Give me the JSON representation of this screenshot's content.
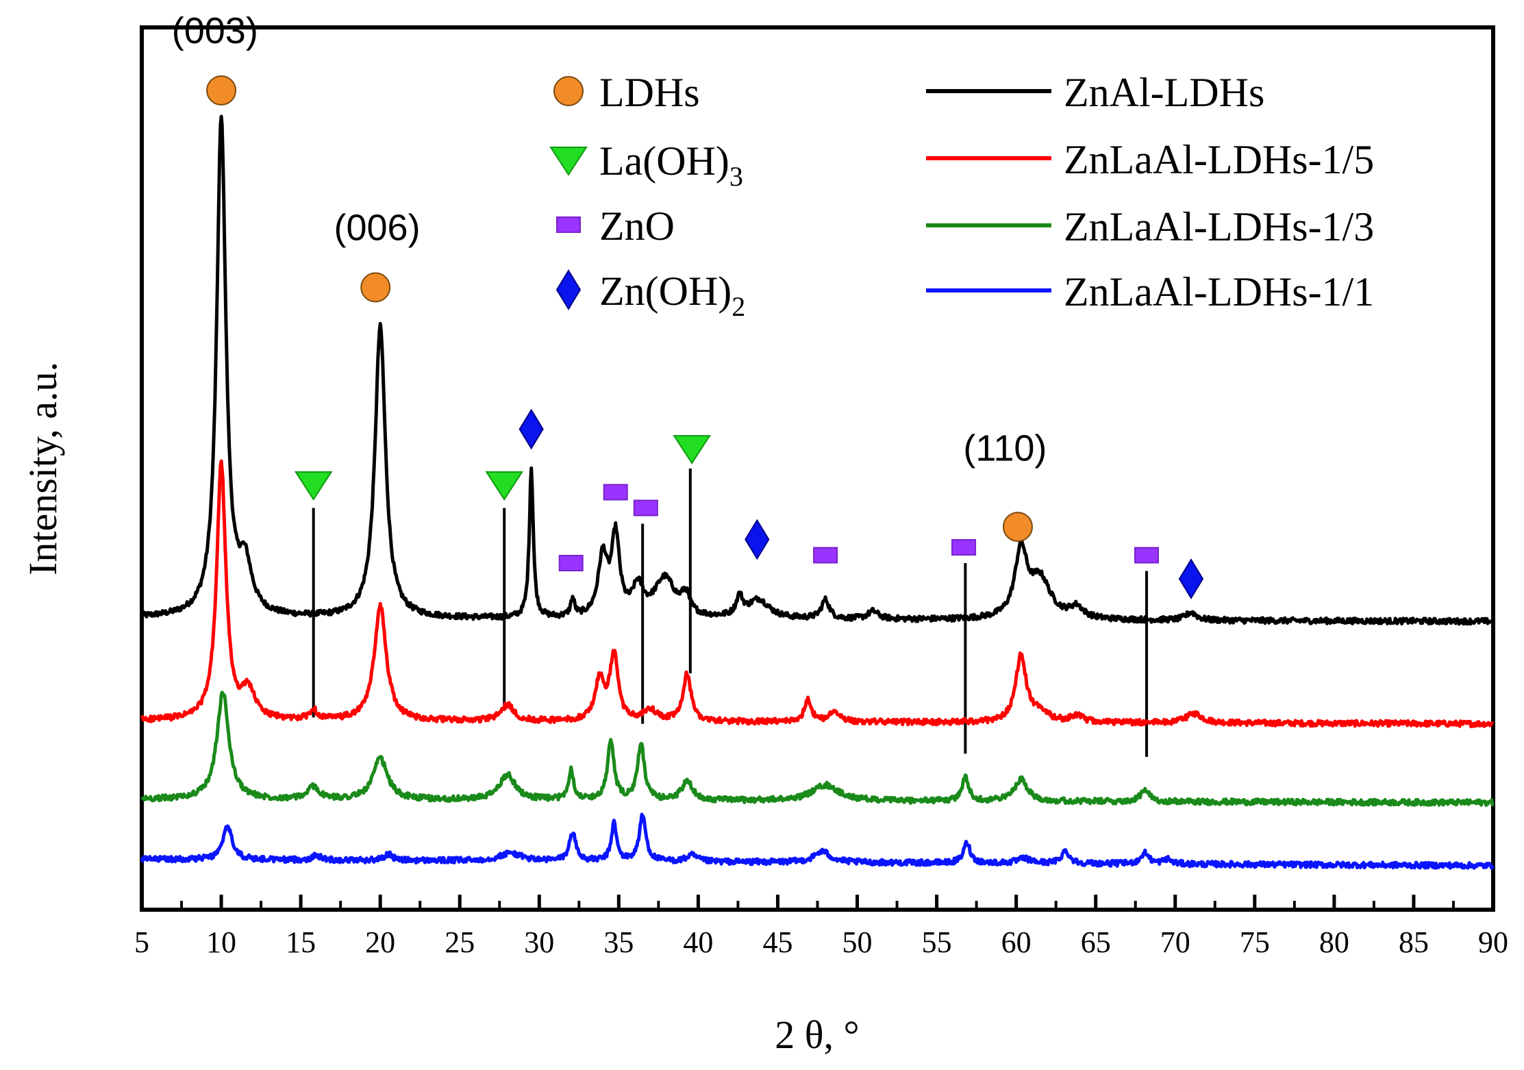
{
  "chart_data": {
    "type": "line",
    "title": "",
    "xlabel": "2 θ, °",
    "ylabel": "Intensity, a.u.",
    "xlim": [
      5,
      90
    ],
    "xticks": [
      5,
      10,
      15,
      20,
      25,
      30,
      35,
      40,
      45,
      50,
      55,
      60,
      65,
      70,
      75,
      80,
      85,
      90
    ],
    "grid": false,
    "colors": {
      "ZnAl-LDHs": "#000000",
      "ZnLaAl-LDHs-1/5": "#ff0000",
      "ZnLaAl-LDHs-1/3": "#1a8a1a",
      "ZnLaAl-LDHs-1/1": "#0a14ff",
      "ldh_marker": "#f28c28",
      "laoh3_marker": "#22dd22",
      "zno_marker": "#9933ff",
      "znoh2_marker": "#0a14ee"
    },
    "series": [
      {
        "name": "ZnAl-LDHs",
        "baseline_start": 1.85,
        "baseline_end": 1.83,
        "peaks": [
          [
            10.0,
            3.15,
            0.35
          ],
          [
            11.5,
            0.3,
            0.5
          ],
          [
            20.0,
            1.85,
            0.4
          ],
          [
            29.5,
            0.95,
            0.15
          ],
          [
            32.1,
            0.11,
            0.15
          ],
          [
            34.0,
            0.38,
            0.35
          ],
          [
            34.8,
            0.5,
            0.3
          ],
          [
            36.2,
            0.18,
            0.4
          ],
          [
            37.9,
            0.25,
            0.8
          ],
          [
            39.2,
            0.12,
            0.3
          ],
          [
            42.6,
            0.12,
            0.25
          ],
          [
            43.8,
            0.12,
            0.8
          ],
          [
            48.0,
            0.12,
            0.3
          ],
          [
            51.0,
            0.05,
            0.4
          ],
          [
            60.3,
            0.42,
            0.45
          ],
          [
            61.5,
            0.25,
            0.8
          ],
          [
            63.8,
            0.07,
            0.5
          ],
          [
            71.0,
            0.05,
            0.4
          ]
        ]
      },
      {
        "name": "ZnLaAl-LDHs-1/5",
        "baseline_start": 1.2,
        "baseline_end": 1.18,
        "peaks": [
          [
            10.0,
            1.62,
            0.35
          ],
          [
            11.7,
            0.18,
            0.5
          ],
          [
            15.8,
            0.06,
            0.3
          ],
          [
            20.0,
            0.73,
            0.45
          ],
          [
            28.0,
            0.1,
            0.5
          ],
          [
            33.8,
            0.26,
            0.35
          ],
          [
            34.7,
            0.42,
            0.3
          ],
          [
            37.0,
            0.07,
            0.5
          ],
          [
            39.3,
            0.3,
            0.3
          ],
          [
            46.9,
            0.15,
            0.25
          ],
          [
            48.6,
            0.07,
            0.4
          ],
          [
            60.3,
            0.42,
            0.4
          ],
          [
            61.5,
            0.06,
            0.6
          ],
          [
            63.8,
            0.04,
            0.5
          ],
          [
            71.2,
            0.06,
            0.6
          ]
        ]
      },
      {
        "name": "ZnLaAl-LDHs-1/3",
        "baseline_start": 0.7,
        "baseline_end": 0.68,
        "peaks": [
          [
            10.1,
            0.68,
            0.45
          ],
          [
            15.8,
            0.08,
            0.4
          ],
          [
            20.0,
            0.26,
            0.55
          ],
          [
            28.0,
            0.16,
            0.6
          ],
          [
            32.0,
            0.19,
            0.2
          ],
          [
            34.5,
            0.37,
            0.25
          ],
          [
            36.4,
            0.36,
            0.25
          ],
          [
            39.3,
            0.12,
            0.4
          ],
          [
            48.0,
            0.1,
            1.0
          ],
          [
            56.8,
            0.15,
            0.25
          ],
          [
            60.3,
            0.14,
            0.5
          ],
          [
            68.1,
            0.07,
            0.35
          ]
        ]
      },
      {
        "name": "ZnLaAl-LDHs-1/1",
        "baseline_start": 0.32,
        "baseline_end": 0.28,
        "peaks": [
          [
            10.4,
            0.21,
            0.35
          ],
          [
            16.0,
            0.03,
            0.3
          ],
          [
            20.5,
            0.04,
            0.3
          ],
          [
            28.2,
            0.05,
            0.8
          ],
          [
            32.1,
            0.18,
            0.25
          ],
          [
            34.7,
            0.24,
            0.2
          ],
          [
            36.5,
            0.29,
            0.25
          ],
          [
            39.6,
            0.04,
            0.4
          ],
          [
            47.8,
            0.07,
            0.6
          ],
          [
            56.9,
            0.13,
            0.25
          ],
          [
            60.5,
            0.03,
            0.5
          ],
          [
            63.1,
            0.08,
            0.3
          ],
          [
            68.1,
            0.07,
            0.3
          ],
          [
            69.5,
            0.03,
            0.3
          ]
        ]
      }
    ],
    "ylim": [
      0,
      5.6
    ],
    "phase_legend": [
      {
        "label": "LDHs",
        "sub": "",
        "marker": "circle"
      },
      {
        "label": "La(OH)",
        "sub": "3",
        "marker": "triangle"
      },
      {
        "label": "ZnO",
        "sub": "",
        "marker": "square"
      },
      {
        "label": "Zn(OH)",
        "sub": "2",
        "marker": "diamond"
      }
    ],
    "phase_markers": [
      {
        "marker": "circle",
        "x": 10.0,
        "y": 5.2
      },
      {
        "marker": "circle",
        "x": 19.7,
        "y": 3.95
      },
      {
        "marker": "circle",
        "x": 60.1,
        "y": 2.43
      },
      {
        "marker": "triangle",
        "x": 15.8,
        "y": 2.7
      },
      {
        "marker": "triangle",
        "x": 27.8,
        "y": 2.7
      },
      {
        "marker": "triangle",
        "x": 39.6,
        "y": 2.93
      },
      {
        "marker": "diamond",
        "x": 29.5,
        "y": 3.05
      },
      {
        "marker": "diamond",
        "x": 43.7,
        "y": 2.35
      },
      {
        "marker": "diamond",
        "x": 71.0,
        "y": 2.1
      },
      {
        "marker": "square",
        "x": 32.0,
        "y": 2.2
      },
      {
        "marker": "square",
        "x": 34.8,
        "y": 2.65
      },
      {
        "marker": "square",
        "x": 36.7,
        "y": 2.55
      },
      {
        "marker": "square",
        "x": 48.0,
        "y": 2.25
      },
      {
        "marker": "square",
        "x": 56.7,
        "y": 2.3
      },
      {
        "marker": "square",
        "x": 68.2,
        "y": 2.25
      }
    ],
    "reference_lines": [
      {
        "x": 15.8,
        "y_from": 1.22,
        "y_to": 2.55
      },
      {
        "x": 27.8,
        "y_from": 1.28,
        "y_to": 2.55
      },
      {
        "x": 36.5,
        "y_from": 1.18,
        "y_to": 2.45
      },
      {
        "x": 39.5,
        "y_from": 1.5,
        "y_to": 2.8
      },
      {
        "x": 56.8,
        "y_from": 0.99,
        "y_to": 2.2
      },
      {
        "x": 68.2,
        "y_from": 0.97,
        "y_to": 2.15
      }
    ],
    "annotations": [
      {
        "text": "(003)",
        "x": 9.6,
        "y": 5.5
      },
      {
        "text": "(006)",
        "x": 19.8,
        "y": 4.25
      },
      {
        "text": "(110)",
        "x": 59.3,
        "y": 2.85
      }
    ]
  }
}
